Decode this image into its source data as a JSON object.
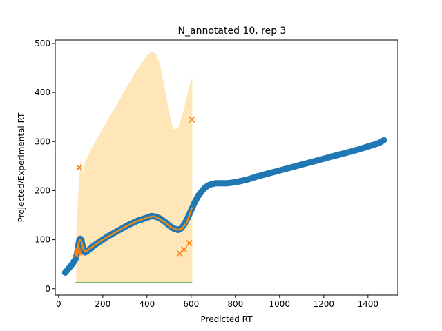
{
  "chart_data": {
    "type": "scatter",
    "title": "N_annotated 10, rep 3",
    "xlabel": "Predicted RT",
    "ylabel": "Projected/Experimental RT",
    "xlim": [
      -15,
      1535
    ],
    "ylim": [
      -13,
      507
    ],
    "xticks": [
      0,
      200,
      400,
      600,
      800,
      1000,
      1200,
      1400
    ],
    "yticks": [
      0,
      100,
      200,
      300,
      400,
      500
    ],
    "grid": false,
    "colors": {
      "projection_points": "#1f77b4",
      "annotated_points": "#ff7f0e",
      "fit_line": "#ff8c00",
      "confidence_band": "#ffe6b8",
      "baseline": "#2ca02c"
    },
    "series": [
      {
        "kind": "points",
        "style": "circle",
        "values": [
          [
            30,
            33
          ],
          [
            58,
            48
          ],
          [
            65,
            52
          ],
          [
            70,
            56
          ],
          [
            76,
            60
          ],
          [
            80,
            66
          ],
          [
            84,
            72
          ],
          [
            88,
            84
          ],
          [
            91,
            92
          ],
          [
            94,
            99
          ],
          [
            98,
            102
          ],
          [
            103,
            99
          ],
          [
            108,
            88
          ],
          [
            113,
            78
          ],
          [
            120,
            74
          ],
          [
            130,
            77
          ],
          [
            145,
            82
          ],
          [
            160,
            88
          ],
          [
            180,
            94
          ],
          [
            200,
            100
          ],
          [
            220,
            106
          ],
          [
            240,
            111
          ],
          [
            260,
            116
          ],
          [
            280,
            121
          ],
          [
            300,
            126
          ],
          [
            320,
            131
          ],
          [
            340,
            135
          ],
          [
            360,
            139
          ],
          [
            380,
            142
          ],
          [
            400,
            145
          ],
          [
            420,
            148
          ],
          [
            440,
            147
          ],
          [
            460,
            143
          ],
          [
            480,
            137
          ],
          [
            500,
            129
          ],
          [
            520,
            123
          ],
          [
            540,
            120
          ],
          [
            555,
            123
          ],
          [
            570,
            132
          ],
          [
            585,
            145
          ],
          [
            600,
            160
          ],
          [
            615,
            175
          ],
          [
            630,
            188
          ],
          [
            645,
            197
          ],
          [
            660,
            205
          ],
          [
            675,
            210
          ],
          [
            690,
            213
          ],
          [
            710,
            215
          ],
          [
            730,
            215
          ],
          [
            760,
            215
          ],
          [
            800,
            217
          ],
          [
            850,
            222
          ],
          [
            900,
            229
          ],
          [
            950,
            235
          ],
          [
            1000,
            241
          ],
          [
            1050,
            247
          ],
          [
            1100,
            253
          ],
          [
            1150,
            259
          ],
          [
            1200,
            265
          ],
          [
            1250,
            271
          ],
          [
            1300,
            277
          ],
          [
            1350,
            283
          ],
          [
            1400,
            290
          ],
          [
            1450,
            297
          ],
          [
            1472,
            303
          ]
        ]
      },
      {
        "kind": "band",
        "x": [
          80,
          90,
          100,
          110,
          120,
          150,
          200,
          250,
          300,
          350,
          400,
          420,
          440,
          460,
          480,
          500,
          520,
          540,
          560,
          575,
          590,
          605
        ],
        "upper": [
          110,
          200,
          268,
          232,
          260,
          287,
          327,
          365,
          405,
          443,
          476,
          483,
          480,
          455,
          410,
          360,
          325,
          327,
          355,
          380,
          410,
          432
        ],
        "lower": [
          12,
          12,
          12,
          12,
          12,
          12,
          12,
          12,
          12,
          12,
          12,
          12,
          12,
          12,
          12,
          12,
          12,
          12,
          12,
          12,
          12,
          12
        ]
      },
      {
        "kind": "line",
        "values": [
          [
            80,
            70
          ],
          [
            86,
            80
          ],
          [
            92,
            95
          ],
          [
            98,
            100
          ],
          [
            104,
            96
          ],
          [
            110,
            84
          ],
          [
            118,
            76
          ],
          [
            130,
            78
          ],
          [
            160,
            88
          ],
          [
            200,
            100
          ],
          [
            250,
            113
          ],
          [
            300,
            126
          ],
          [
            350,
            137
          ],
          [
            400,
            145
          ],
          [
            430,
            148
          ],
          [
            450,
            144
          ],
          [
            480,
            136
          ],
          [
            510,
            125
          ],
          [
            540,
            120
          ],
          [
            560,
            123
          ],
          [
            580,
            135
          ],
          [
            600,
            160
          ],
          [
            605,
            166
          ]
        ]
      },
      {
        "kind": "line",
        "values": [
          [
            75,
            12
          ],
          [
            605,
            12
          ]
        ]
      },
      {
        "kind": "points",
        "style": "x",
        "values": [
          [
            80,
            70
          ],
          [
            84,
            74
          ],
          [
            88,
            78
          ],
          [
            92,
            73
          ],
          [
            96,
            75
          ],
          [
            94,
            247
          ],
          [
            603,
            345
          ],
          [
            548,
            72
          ],
          [
            568,
            80
          ],
          [
            592,
            93
          ]
        ]
      }
    ]
  }
}
